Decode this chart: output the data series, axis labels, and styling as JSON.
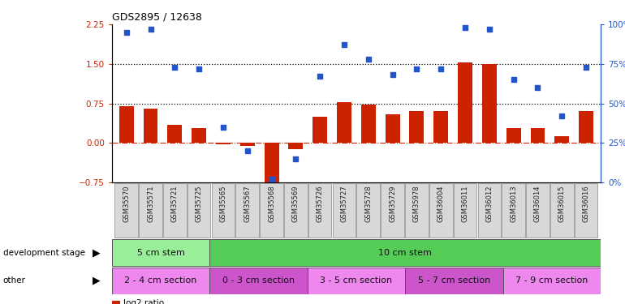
{
  "title": "GDS2895 / 12638",
  "samples": [
    "GSM35570",
    "GSM35571",
    "GSM35721",
    "GSM35725",
    "GSM35565",
    "GSM35567",
    "GSM35568",
    "GSM35569",
    "GSM35726",
    "GSM35727",
    "GSM35728",
    "GSM35729",
    "GSM35978",
    "GSM36004",
    "GSM36011",
    "GSM36012",
    "GSM36013",
    "GSM36014",
    "GSM36015",
    "GSM36016"
  ],
  "log2_ratio": [
    0.7,
    0.65,
    0.35,
    0.28,
    -0.03,
    -0.05,
    -0.75,
    -0.12,
    0.5,
    0.78,
    0.72,
    0.55,
    0.6,
    0.6,
    1.52,
    1.5,
    0.28,
    0.28,
    0.12,
    0.6
  ],
  "percentile": [
    95,
    97,
    73,
    72,
    35,
    20,
    2,
    15,
    67,
    87,
    78,
    68,
    72,
    72,
    98,
    97,
    65,
    60,
    42,
    73
  ],
  "ylim_left": [
    -0.75,
    2.25
  ],
  "ylim_right": [
    0,
    100
  ],
  "yticks_left": [
    -0.75,
    0.0,
    0.75,
    1.5,
    2.25
  ],
  "yticks_right": [
    0,
    25,
    50,
    75,
    100
  ],
  "hlines": [
    1.5,
    0.75
  ],
  "bar_color": "#cc2200",
  "dot_color": "#2255cc",
  "dot_size": 22,
  "dev_stage_groups": [
    {
      "label": "5 cm stem",
      "start": 0,
      "end": 4,
      "color": "#99ee99"
    },
    {
      "label": "10 cm stem",
      "start": 4,
      "end": 20,
      "color": "#55cc55"
    }
  ],
  "other_groups": [
    {
      "label": "2 - 4 cm section",
      "start": 0,
      "end": 4,
      "color": "#ee88ee"
    },
    {
      "label": "0 - 3 cm section",
      "start": 4,
      "end": 8,
      "color": "#cc55cc"
    },
    {
      "label": "3 - 5 cm section",
      "start": 8,
      "end": 12,
      "color": "#ee88ee"
    },
    {
      "label": "5 - 7 cm section",
      "start": 12,
      "end": 16,
      "color": "#cc55cc"
    },
    {
      "label": "7 - 9 cm section",
      "start": 16,
      "end": 20,
      "color": "#ee88ee"
    }
  ],
  "background_color": "#ffffff"
}
